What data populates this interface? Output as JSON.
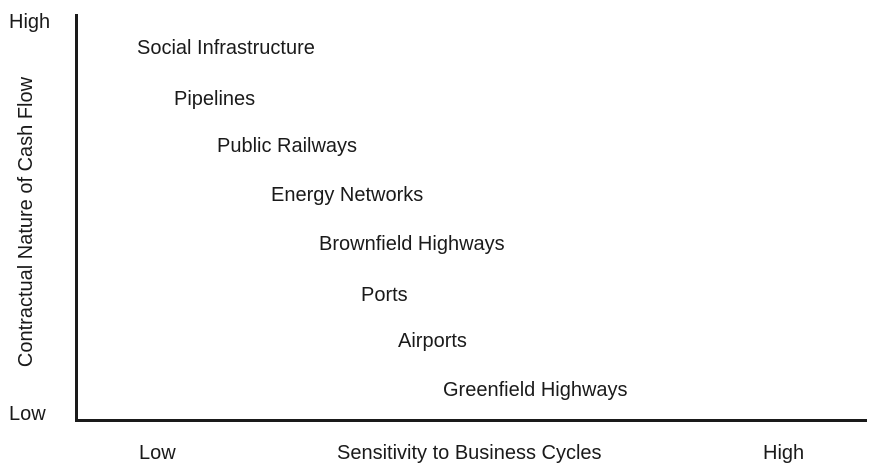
{
  "diagram": {
    "y_axis": {
      "title": "Contractual Nature of Cash Flow",
      "high_label": "High",
      "low_label": "Low"
    },
    "x_axis": {
      "title": "Sensitivity to Business Cycles",
      "low_label": "Low",
      "high_label": "High"
    },
    "sectors": [
      "Social Infrastructure",
      "Pipelines",
      "Public Railways",
      "Energy Networks",
      "Brownfield Highways",
      "Ports",
      "Airports",
      "Greenfield Highways"
    ]
  }
}
